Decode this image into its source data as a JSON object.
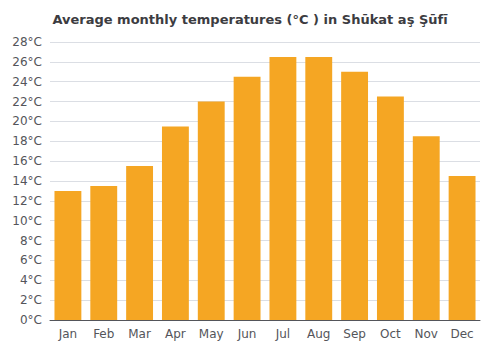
{
  "chart_data": {
    "type": "bar",
    "title": "Average monthly temperatures (°C ) in Shūkat aş Şūfī",
    "categories": [
      "Jan",
      "Feb",
      "Mar",
      "Apr",
      "May",
      "Jun",
      "Jul",
      "Aug",
      "Sep",
      "Oct",
      "Nov",
      "Dec"
    ],
    "values": [
      13,
      13.5,
      15.5,
      19.5,
      22,
      24.5,
      26.5,
      26.5,
      25,
      22.5,
      18.5,
      14.5
    ],
    "color": "#F5A623",
    "ylim": [
      0,
      28
    ],
    "yticks": [
      {
        "value": 0,
        "label": "0°C"
      },
      {
        "value": 2,
        "label": "2°C"
      },
      {
        "value": 4,
        "label": "4°C"
      },
      {
        "value": 6,
        "label": "6°C"
      },
      {
        "value": 8,
        "label": "8°C"
      },
      {
        "value": 10,
        "label": "10°C"
      },
      {
        "value": 12,
        "label": "12°C"
      },
      {
        "value": 14,
        "label": "14°C"
      },
      {
        "value": 16,
        "label": "16°C"
      },
      {
        "value": 18,
        "label": "18°C"
      },
      {
        "value": 20,
        "label": "20°C"
      },
      {
        "value": 22,
        "label": "22°C"
      },
      {
        "value": 24,
        "label": "24°C"
      },
      {
        "value": 26,
        "label": "26°C"
      },
      {
        "value": 28,
        "label": "28°C"
      }
    ],
    "grid": true
  }
}
